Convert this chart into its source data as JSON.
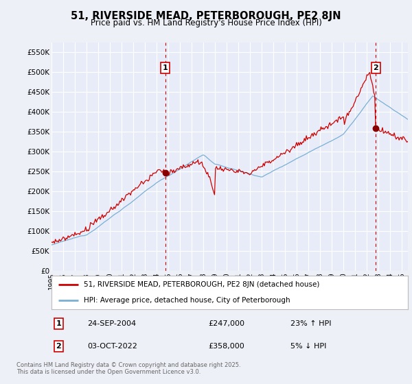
{
  "title": "51, RIVERSIDE MEAD, PETERBOROUGH, PE2 8JN",
  "subtitle": "Price paid vs. HM Land Registry's House Price Index (HPI)",
  "ylim": [
    0,
    575000
  ],
  "xlim_start": 1995.0,
  "xlim_end": 2025.5,
  "bg_color": "#eef0f8",
  "plot_bg_color": "#e8ecf8",
  "grid_color": "#ffffff",
  "red_line_color": "#cc0000",
  "blue_line_color": "#7ab0d4",
  "dashed_line_color": "#cc0000",
  "marker1_x": 2004.73,
  "marker1_y": 247000,
  "marker2_x": 2022.75,
  "marker2_y": 358000,
  "legend_line1": "51, RIVERSIDE MEAD, PETERBOROUGH, PE2 8JN (detached house)",
  "legend_line2": "HPI: Average price, detached house, City of Peterborough",
  "annotation1_date": "24-SEP-2004",
  "annotation1_price": "£247,000",
  "annotation1_hpi": "23% ↑ HPI",
  "annotation2_date": "03-OCT-2022",
  "annotation2_price": "£358,000",
  "annotation2_hpi": "5% ↓ HPI",
  "footnote": "Contains HM Land Registry data © Crown copyright and database right 2025.\nThis data is licensed under the Open Government Licence v3.0."
}
